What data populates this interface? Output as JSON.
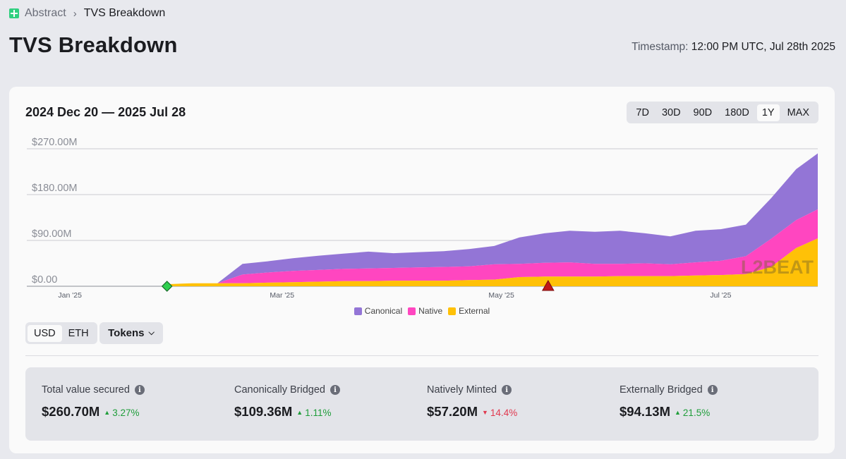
{
  "breadcrumb": {
    "root": "Abstract",
    "current": "TVS Breakdown"
  },
  "page_title": "TVS Breakdown",
  "timestamp": {
    "label": "Timestamp:",
    "value": "12:00 PM UTC, Jul 28th 2025"
  },
  "range_title": "2024 Dec 20 — 2025 Jul 28",
  "range_buttons": [
    {
      "label": "7D",
      "active": false
    },
    {
      "label": "30D",
      "active": false
    },
    {
      "label": "90D",
      "active": false
    },
    {
      "label": "180D",
      "active": false
    },
    {
      "label": "1Y",
      "active": true
    },
    {
      "label": "MAX",
      "active": false
    }
  ],
  "currency_toggle": {
    "usd": "USD",
    "eth": "ETH",
    "active": "USD"
  },
  "tokens_label": "Tokens",
  "watermark": "L2BEAT",
  "colors": {
    "canonical": "#9375d6",
    "native": "#ff46c0",
    "external": "#ffc107",
    "up": "#1f9d3a",
    "down": "#e0394f"
  },
  "chart_data": {
    "type": "area",
    "stacked": true,
    "y_tick_labels": [
      "$270.00M",
      "$180.00M",
      "$90.00M",
      "$0.00"
    ],
    "y_ticks": [
      270,
      180,
      90,
      0
    ],
    "ylim": [
      0,
      270
    ],
    "x_range": [
      "2024-12-20",
      "2025-07-28"
    ],
    "x_tick_labels": [
      "Jan '25",
      "Mar '25",
      "May '25",
      "Jul '25"
    ],
    "x_ticks": [
      "2025-01-01",
      "2025-03-01",
      "2025-05-01",
      "2025-07-01"
    ],
    "x": [
      "2025-01-28",
      "2025-02-04",
      "2025-02-11",
      "2025-02-18",
      "2025-02-25",
      "2025-03-04",
      "2025-03-11",
      "2025-03-18",
      "2025-03-25",
      "2025-04-01",
      "2025-04-08",
      "2025-04-15",
      "2025-04-22",
      "2025-04-29",
      "2025-05-06",
      "2025-05-13",
      "2025-05-20",
      "2025-05-27",
      "2025-06-03",
      "2025-06-10",
      "2025-06-17",
      "2025-06-24",
      "2025-07-01",
      "2025-07-08",
      "2025-07-15",
      "2025-07-22",
      "2025-07-28"
    ],
    "series": [
      {
        "name": "External",
        "values": [
          4,
          6,
          6,
          6,
          7,
          8,
          9,
          10,
          10,
          11,
          11,
          11,
          12,
          13,
          18,
          19,
          19,
          19,
          20,
          20,
          20,
          21,
          22,
          24,
          38,
          75,
          94
        ]
      },
      {
        "name": "Native",
        "values": [
          0,
          0,
          0,
          17,
          20,
          22,
          23,
          24,
          25,
          25,
          26,
          27,
          27,
          30,
          26,
          27,
          28,
          25,
          24,
          25,
          23,
          26,
          28,
          35,
          55,
          55,
          57
        ]
      },
      {
        "name": "Canonical",
        "values": [
          0,
          0,
          0,
          21,
          22,
          25,
          28,
          30,
          33,
          29,
          30,
          31,
          34,
          36,
          52,
          58,
          62,
          63,
          65,
          59,
          55,
          62,
          62,
          62,
          80,
          100,
          110
        ]
      }
    ],
    "markers": [
      {
        "date": "2025-01-28",
        "shape": "diamond",
        "color": "#2fcf4f"
      },
      {
        "date": "2025-05-14",
        "shape": "triangle",
        "color": "#c01818"
      }
    ],
    "legend": [
      "Canonical",
      "Native",
      "External"
    ],
    "legend_position": "bottom-center",
    "grid": true
  },
  "stats": [
    {
      "label": "Total value secured",
      "value": "$260.70M",
      "change": "3.27%",
      "direction": "up"
    },
    {
      "label": "Canonically Bridged",
      "value": "$109.36M",
      "change": "1.11%",
      "direction": "up"
    },
    {
      "label": "Natively Minted",
      "value": "$57.20M",
      "change": "14.4%",
      "direction": "down"
    },
    {
      "label": "Externally Bridged",
      "value": "$94.13M",
      "change": "21.5%",
      "direction": "up"
    }
  ]
}
